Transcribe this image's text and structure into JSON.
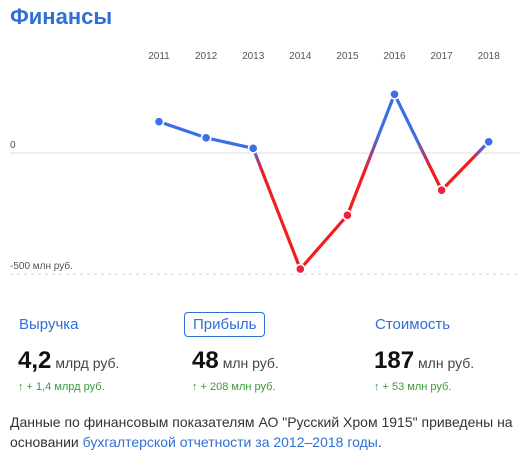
{
  "title": "Финансы",
  "chart_data": {
    "type": "line",
    "categories": [
      "2011",
      "2012",
      "2013",
      "2014",
      "2015",
      "2016",
      "2017",
      "2018"
    ],
    "values": [
      134,
      65,
      20,
      -496,
      -266,
      251,
      -159,
      48
    ],
    "y_tick_labels": [
      "0",
      "-500 млн руб."
    ],
    "ylim": [
      -560,
      320
    ],
    "grid": true,
    "colors": {
      "positive": "#3b6fe8",
      "negative": "#f01e1e",
      "point_fill": "#3b6fe8",
      "point_fill_negative": "#e8233a"
    }
  },
  "metrics": [
    {
      "label": "Выручка",
      "value": "4,2",
      "unit": "млрд руб.",
      "delta_arrow": "↑",
      "delta": "+ 1,4 млрд руб.",
      "active": false
    },
    {
      "label": "Прибыль",
      "value": "48",
      "unit": "млн руб.",
      "delta_arrow": "↑",
      "delta": "+ 208 млн руб.",
      "active": true
    },
    {
      "label": "Стоимость",
      "value": "187",
      "unit": "млн руб.",
      "delta_arrow": "↑",
      "delta": "+ 53 млн руб.",
      "active": false
    }
  ],
  "note": {
    "text": "Данные по финансовым показателям АО \"Русский Хром 1915\" приведены на основании ",
    "link": "бухгалтерской отчетности за 2012–2018 годы",
    "tail": "."
  }
}
